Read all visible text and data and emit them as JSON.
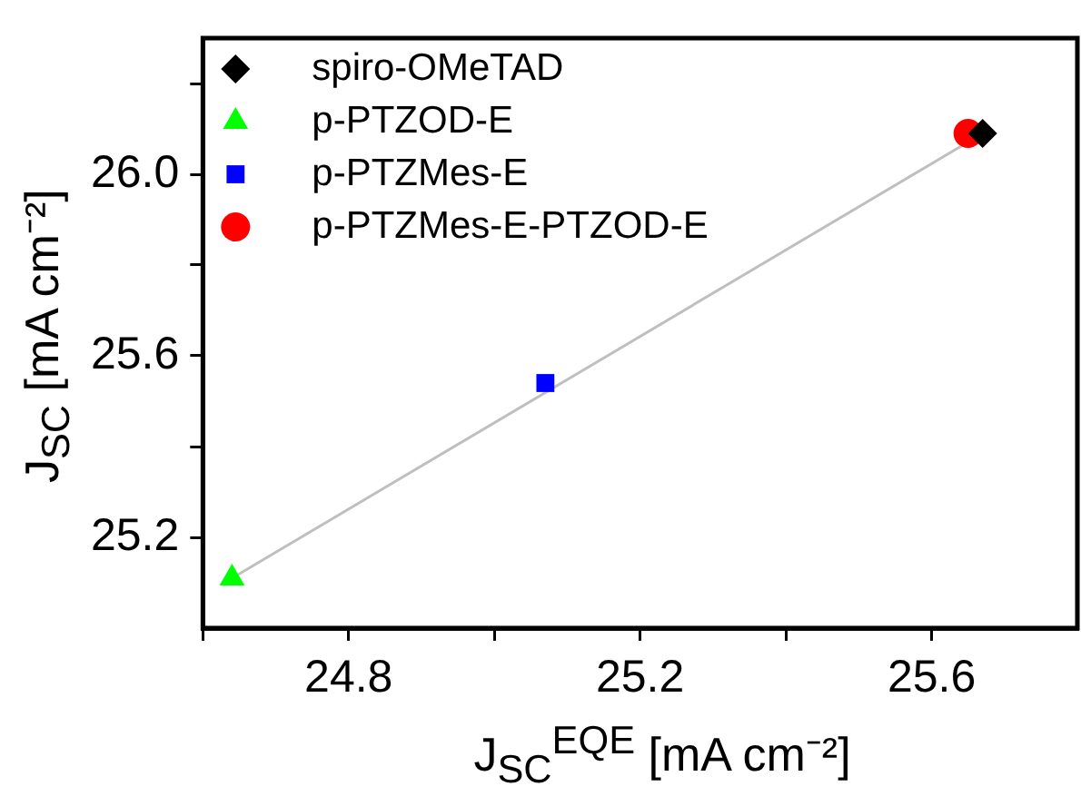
{
  "chart_data": {
    "type": "scatter",
    "xlabel": "J$_{SC}$$^{EQE}$ [mA cm⁻²]",
    "ylabel": "J$_{SC}$ [mA cm⁻²]",
    "xlim": [
      24.6,
      25.8
    ],
    "ylim": [
      25.0,
      26.3
    ],
    "xticks": [
      {
        "value": 24.6,
        "label": null
      },
      24.8,
      {
        "value": 25.0,
        "label": null
      },
      25.2,
      {
        "value": 25.4,
        "label": null
      },
      25.6
    ],
    "yticks": [
      25.2,
      {
        "value": 25.4,
        "label": null
      },
      25.6,
      {
        "value": 25.8,
        "label": null
      },
      {
        "value": 26.0,
        "label": "26.0"
      },
      {
        "value": 26.2,
        "label": null
      }
    ],
    "grid": false,
    "legend": "top left",
    "series": [
      {
        "type": "line",
        "color": "#bfbfbf",
        "x": [
          24.64,
          25.67
        ],
        "values": [
          25.11,
          26.09
        ],
        "marker": "none"
      },
      {
        "name": "spiro-OMeTAD",
        "color": "#000000",
        "x": [
          25.67
        ],
        "values": [
          26.09
        ],
        "marker": "diamond"
      },
      {
        "name": "p-PTZOD-E",
        "color": "#00ff00",
        "x": [
          24.64
        ],
        "values": [
          25.11
        ],
        "marker": "triangle"
      },
      {
        "name": "p-PTZMes-E",
        "color": "#0000ff",
        "x": [
          25.07
        ],
        "values": [
          25.54
        ],
        "marker": "square"
      },
      {
        "name": "p-PTZMes-E-PTZOD-E",
        "color": "#ff0000",
        "x": [
          25.65
        ],
        "values": [
          26.09
        ],
        "marker": "circle"
      }
    ]
  }
}
